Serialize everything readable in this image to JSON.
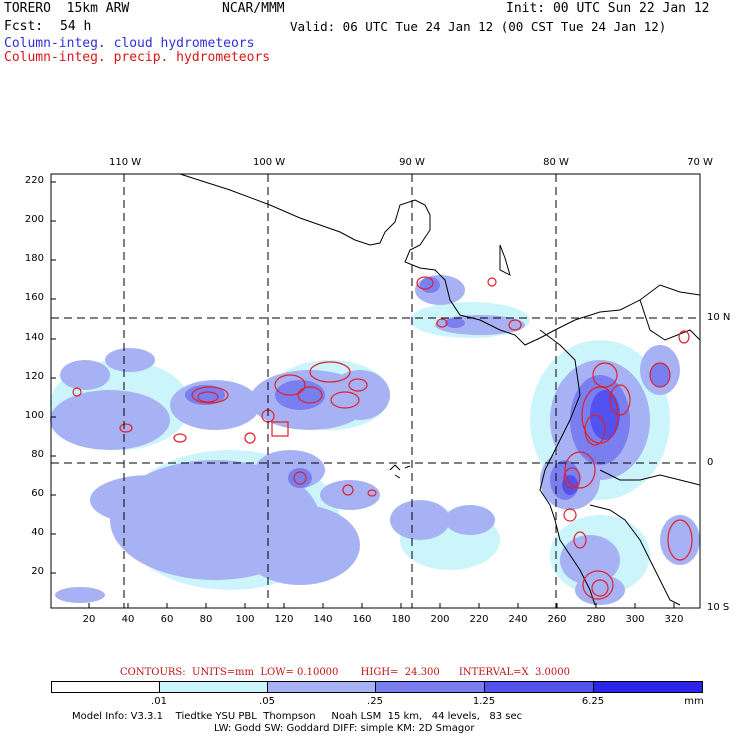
{
  "header": {
    "model": "TORERO  15km ARW",
    "org": "NCAR/MMM",
    "init": "Init: 00 UTC Sun 22 Jan 12",
    "fcst_label": "Fcst:",
    "fcst_value": "54 h",
    "valid": "Valid: 06 UTC Tue 24 Jan 12 (00 CST Tue 24 Jan 12)",
    "field_cloud": "Column-integ. cloud hydrometeors",
    "field_precip": "Column-integ. precip. hydrometeors"
  },
  "map": {
    "lon_labels": [
      "110 W",
      "100 W",
      "90 W",
      "80 W",
      "70 W"
    ],
    "lat_labels": [
      "10 N",
      "0",
      "10 S"
    ],
    "y_ticks": [
      "220",
      "200",
      "180",
      "160",
      "140",
      "120",
      "100",
      "80",
      "60",
      "40",
      "20"
    ],
    "x_ticks": [
      "20",
      "40",
      "60",
      "80",
      "100",
      "120",
      "140",
      "160",
      "180",
      "200",
      "220",
      "240",
      "260",
      "280",
      "300",
      "320"
    ]
  },
  "contours": {
    "label": "CONTOURS:",
    "units": "UNITS=mm",
    "low": "LOW= 0.10000",
    "high": "HIGH=  24.300",
    "interval": "INTERVAL=X  3.0000"
  },
  "colorbar": {
    "labels": [
      ".01",
      ".05",
      ".25",
      "1.25",
      "6.25"
    ],
    "unit": "mm",
    "colors": [
      "#ffffff",
      "#ccf4fb",
      "#a7b2f4",
      "#7a7ff0",
      "#5252ee",
      "#2b24ea"
    ]
  },
  "footer": {
    "line1": "Model Info: V3.3.1    Tiedtke YSU PBL  Thompson     Noah LSM  15 km,   44 levels,   83 sec",
    "line2": "LW: Godd SW: Goddard DIFF: simple KM: 2D Smagor"
  }
}
